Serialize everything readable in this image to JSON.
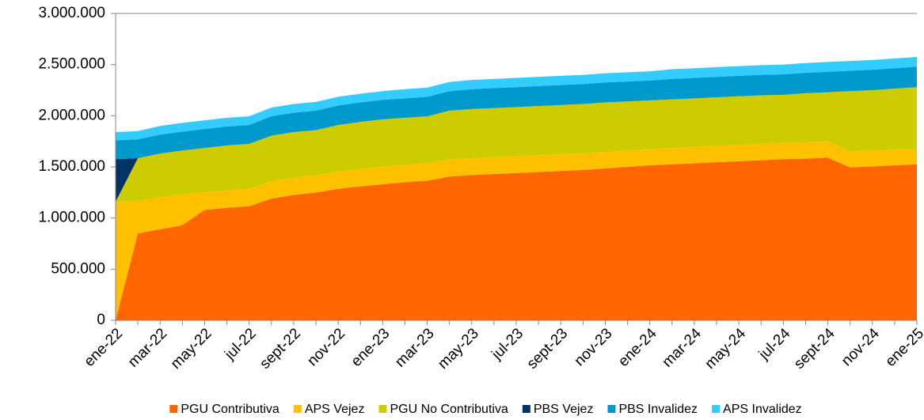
{
  "chart_data": {
    "type": "stacked-area",
    "categories": [
      "ene-22",
      null,
      "mar-22",
      null,
      "may-22",
      null,
      "jul-22",
      null,
      "sept-22",
      null,
      "nov-22",
      null,
      "ene-23",
      null,
      "mar-23",
      null,
      "may-23",
      null,
      "jul-23",
      null,
      "sept-23",
      null,
      "nov-23",
      null,
      "ene-24",
      null,
      "mar-24",
      null,
      "may-24",
      null,
      "jul-24",
      null,
      "sept-24",
      null,
      "nov-24",
      null,
      "ene-25"
    ],
    "series": [
      {
        "name": "PGU Contributiva",
        "color": "#ff6600",
        "values": [
          0,
          850000,
          890000,
          930000,
          1080000,
          1100000,
          1115000,
          1190000,
          1225000,
          1250000,
          1285000,
          1310000,
          1330000,
          1350000,
          1365000,
          1405000,
          1420000,
          1430000,
          1440000,
          1450000,
          1460000,
          1470000,
          1485000,
          1500000,
          1515000,
          1525000,
          1535000,
          1545000,
          1555000,
          1565000,
          1575000,
          1580000,
          1590000,
          1495000,
          1505000,
          1515000,
          1525000
        ]
      },
      {
        "name": "APS Vejez",
        "color": "#ffc000",
        "values": [
          1160000,
          315000,
          315000,
          300000,
          170000,
          170000,
          170000,
          170000,
          170000,
          170000,
          170000,
          170000,
          170000,
          170000,
          170000,
          170000,
          165000,
          165000,
          165000,
          165000,
          165000,
          160000,
          160000,
          160000,
          160000,
          160000,
          160000,
          160000,
          160000,
          160000,
          160000,
          160000,
          160000,
          155000,
          155000,
          155000,
          155000
        ]
      },
      {
        "name": "PGU No Contributiva",
        "color": "#cccc00",
        "values": [
          0,
          420000,
          425000,
          430000,
          435000,
          440000,
          440000,
          445000,
          445000,
          440000,
          455000,
          460000,
          465000,
          460000,
          460000,
          475000,
          480000,
          480000,
          480000,
          480000,
          480000,
          485000,
          485000,
          480000,
          475000,
          475000,
          475000,
          475000,
          475000,
          475000,
          470000,
          480000,
          480000,
          590000,
          590000,
          595000,
          600000
        ]
      },
      {
        "name": "PBS Vejez",
        "color": "#003366",
        "values": [
          415000,
          0,
          0,
          0,
          0,
          0,
          0,
          0,
          0,
          0,
          0,
          0,
          0,
          0,
          0,
          0,
          0,
          0,
          0,
          0,
          0,
          0,
          0,
          0,
          0,
          0,
          0,
          0,
          0,
          0,
          0,
          0,
          0,
          0,
          0,
          0,
          0
        ]
      },
      {
        "name": "PBS Invalidez",
        "color": "#0099cc",
        "values": [
          185000,
          185000,
          185000,
          185000,
          185000,
          185000,
          185000,
          190000,
          190000,
          190000,
          190000,
          190000,
          190000,
          190000,
          190000,
          190000,
          195000,
          195000,
          195000,
          195000,
          195000,
          195000,
          195000,
          195000,
          195000,
          200000,
          200000,
          200000,
          200000,
          200000,
          200000,
          200000,
          200000,
          200000,
          200000,
          200000,
          200000
        ]
      },
      {
        "name": "APS Invalidez",
        "color": "#33ccff",
        "values": [
          80000,
          80000,
          85000,
          85000,
          85000,
          85000,
          85000,
          85000,
          85000,
          85000,
          85000,
          85000,
          85000,
          90000,
          90000,
          90000,
          90000,
          90000,
          90000,
          90000,
          90000,
          90000,
          90000,
          90000,
          90000,
          95000,
          95000,
          95000,
          95000,
          95000,
          95000,
          95000,
          95000,
          95000,
          95000,
          95000,
          95000
        ]
      }
    ],
    "ylim": [
      0,
      3000000
    ],
    "yticks": [
      0,
      {
        "value": 500000,
        "label": "500.000"
      },
      {
        "value": 1000000,
        "label": "1.000.000"
      },
      {
        "value": 1500000,
        "label": "1.500.000"
      },
      {
        "value": 2000000,
        "label": "2.000.000"
      },
      {
        "value": 2500000,
        "label": "2.500.000"
      },
      {
        "value": 3000000,
        "label": "3.000.000"
      }
    ],
    "grid": false,
    "legend": "bottom"
  }
}
